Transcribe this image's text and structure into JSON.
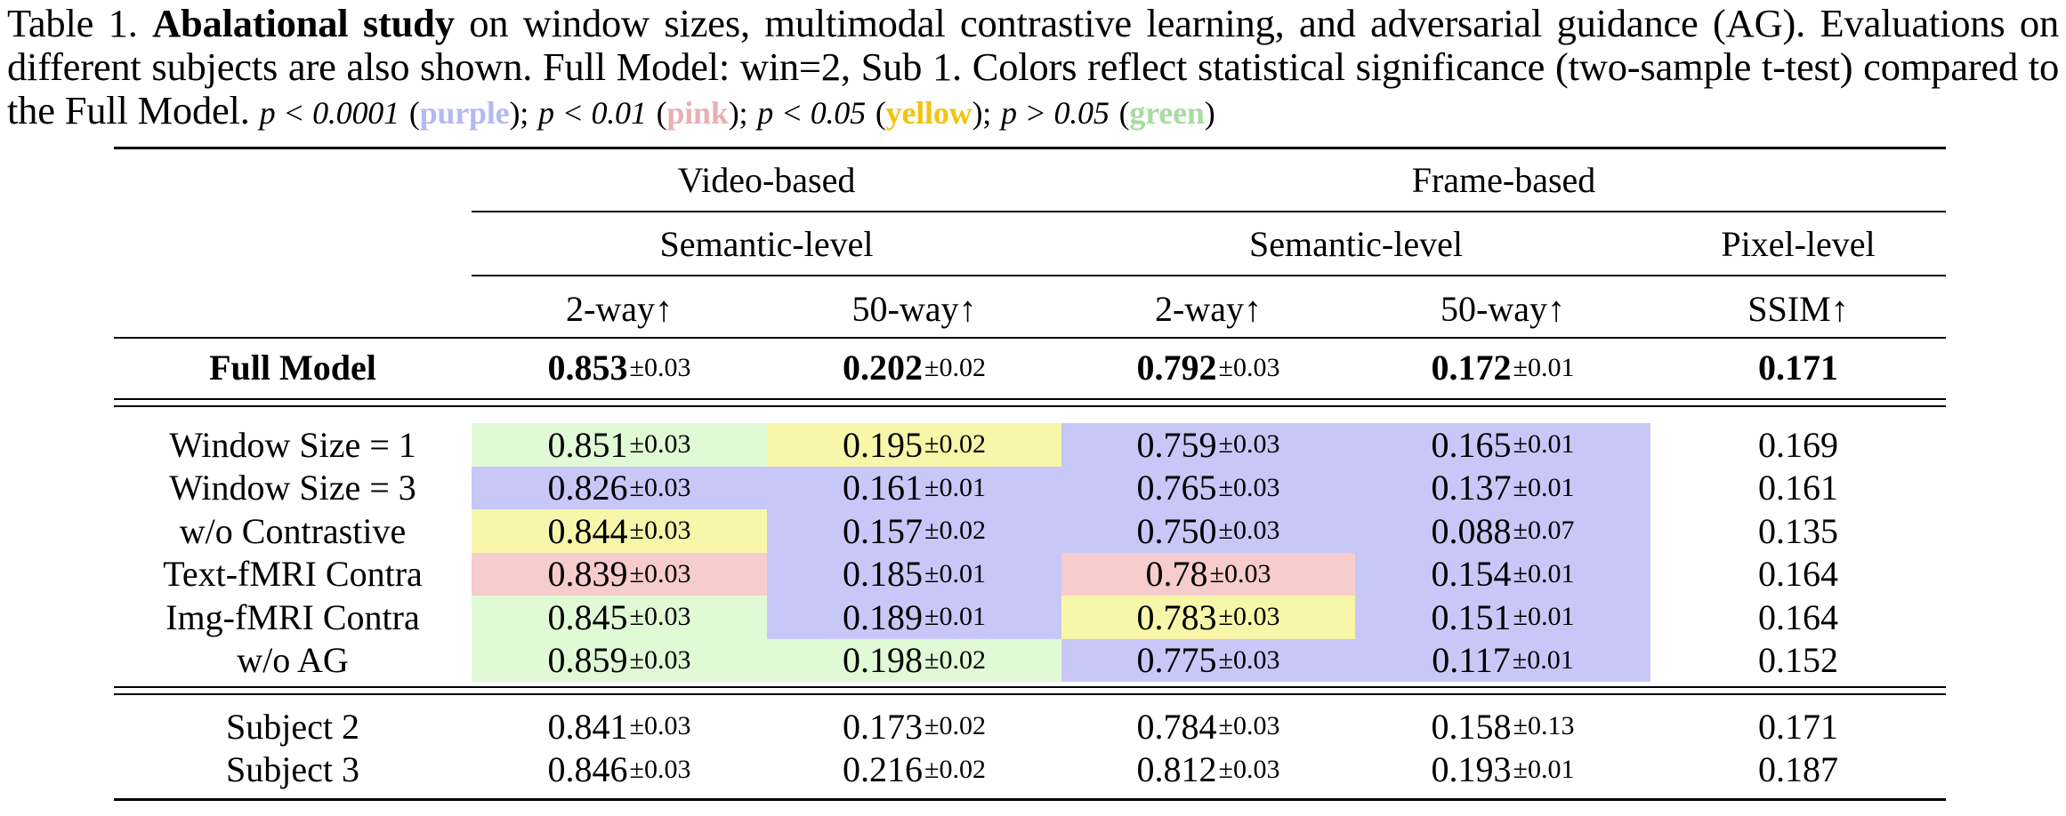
{
  "caption": {
    "label": "Table 1.",
    "bold_title": "Abalational study",
    "text1": " on window sizes, multimodal contrastive learning, and adversarial guidance (AG). Evaluations on different subjects are also shown. Full Model: win=2, Sub 1. Colors reflect statistical significance (two-sample t-test) compared to the Full Model. ",
    "p1": "p < 0.0001",
    "c1": "purple",
    "p2": "p < 0.01",
    "c2": "pink",
    "p3": "p < 0.05",
    "c3": "yellow",
    "p4": "p > 0.05",
    "c4": "green"
  },
  "colors": {
    "purple": "#c8c8f8",
    "pink": "#f7cccc",
    "yellow": "#f8f6a8",
    "green": "#e0fad6"
  },
  "header": {
    "group1": "Video-based",
    "group2": "Frame-based",
    "sub1": "Semantic-level",
    "sub2": "Semantic-level",
    "sub3": "Pixel-level",
    "columns": [
      "2-way↑",
      "50-way↑",
      "2-way↑",
      "50-way↑",
      "SSIM↑"
    ]
  },
  "full_model": {
    "label": "Full Model",
    "cells": [
      {
        "v": "0.853",
        "pm": "±0.03"
      },
      {
        "v": "0.202",
        "pm": "±0.02"
      },
      {
        "v": "0.792",
        "pm": "±0.03"
      },
      {
        "v": "0.172",
        "pm": "±0.01"
      },
      {
        "v": "0.171",
        "pm": ""
      }
    ]
  },
  "ablations": [
    {
      "label": "Window Size = 1",
      "cells": [
        {
          "v": "0.851",
          "pm": "±0.03",
          "c": "green"
        },
        {
          "v": "0.195",
          "pm": "±0.02",
          "c": "yellow"
        },
        {
          "v": "0.759",
          "pm": "±0.03",
          "c": "purple"
        },
        {
          "v": "0.165",
          "pm": "±0.01",
          "c": "purple"
        },
        {
          "v": "0.169",
          "pm": "",
          "c": ""
        }
      ]
    },
    {
      "label": "Window Size = 3",
      "cells": [
        {
          "v": "0.826",
          "pm": "±0.03",
          "c": "purple"
        },
        {
          "v": "0.161",
          "pm": "±0.01",
          "c": "purple"
        },
        {
          "v": "0.765",
          "pm": "±0.03",
          "c": "purple"
        },
        {
          "v": "0.137",
          "pm": "±0.01",
          "c": "purple"
        },
        {
          "v": "0.161",
          "pm": "",
          "c": ""
        }
      ]
    },
    {
      "label": "w/o Contrastive",
      "cells": [
        {
          "v": "0.844",
          "pm": "±0.03",
          "c": "yellow"
        },
        {
          "v": "0.157",
          "pm": "±0.02",
          "c": "purple"
        },
        {
          "v": "0.750",
          "pm": "±0.03",
          "c": "purple"
        },
        {
          "v": "0.088",
          "pm": "±0.07",
          "c": "purple"
        },
        {
          "v": "0.135",
          "pm": "",
          "c": ""
        }
      ]
    },
    {
      "label": "Text-fMRI Contra",
      "cells": [
        {
          "v": "0.839",
          "pm": "±0.03",
          "c": "pink"
        },
        {
          "v": "0.185",
          "pm": "±0.01",
          "c": "purple"
        },
        {
          "v": "0.78",
          "pm": "±0.03",
          "c": "pink"
        },
        {
          "v": "0.154",
          "pm": "±0.01",
          "c": "purple"
        },
        {
          "v": "0.164",
          "pm": "",
          "c": ""
        }
      ]
    },
    {
      "label": "Img-fMRI Contra",
      "cells": [
        {
          "v": "0.845",
          "pm": "±0.03",
          "c": "green"
        },
        {
          "v": "0.189",
          "pm": "±0.01",
          "c": "purple"
        },
        {
          "v": "0.783",
          "pm": "±0.03",
          "c": "yellow"
        },
        {
          "v": "0.151",
          "pm": "±0.01",
          "c": "purple"
        },
        {
          "v": "0.164",
          "pm": "",
          "c": ""
        }
      ]
    },
    {
      "label": "w/o AG",
      "cells": [
        {
          "v": "0.859",
          "pm": "±0.03",
          "c": "green"
        },
        {
          "v": "0.198",
          "pm": "±0.02",
          "c": "green"
        },
        {
          "v": "0.775",
          "pm": "±0.03",
          "c": "purple"
        },
        {
          "v": "0.117",
          "pm": "±0.01",
          "c": "purple"
        },
        {
          "v": "0.152",
          "pm": "",
          "c": ""
        }
      ]
    }
  ],
  "subjects": [
    {
      "label": "Subject 2",
      "cells": [
        {
          "v": "0.841",
          "pm": "±0.03"
        },
        {
          "v": "0.173",
          "pm": "±0.02"
        },
        {
          "v": "0.784",
          "pm": "±0.03"
        },
        {
          "v": "0.158",
          "pm": "±0.13"
        },
        {
          "v": "0.171",
          "pm": ""
        }
      ]
    },
    {
      "label": "Subject 3",
      "cells": [
        {
          "v": "0.846",
          "pm": "±0.03"
        },
        {
          "v": "0.216",
          "pm": "±0.02"
        },
        {
          "v": "0.812",
          "pm": "±0.03"
        },
        {
          "v": "0.193",
          "pm": "±0.01"
        },
        {
          "v": "0.187",
          "pm": ""
        }
      ]
    }
  ]
}
